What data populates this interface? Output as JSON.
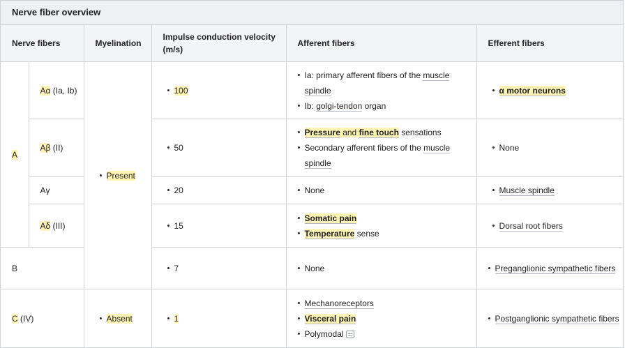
{
  "title": "Nerve fiber overview",
  "headers": {
    "nerve_fibers": "Nerve fibers",
    "myelination": "Myelination",
    "velocity": "Impulse conduction velocity (m/s)",
    "afferent": "Afferent fibers",
    "efferent": "Efferent fibers"
  },
  "groups": {
    "A": "A",
    "B": "B",
    "C": "C",
    "C_suffix": " (IV)"
  },
  "subtypes": {
    "aa_sym": "Aα",
    "aa_rest": " (Ia, Ib)",
    "ab_sym": "Aβ",
    "ab_rest": " (II)",
    "ag": "Aγ",
    "ad_sym": "Aδ",
    "ad_rest": " (III)"
  },
  "myelination": {
    "present": "Present",
    "absent": "Absent"
  },
  "velocity": {
    "aa": "100",
    "ab": "50",
    "ag": "20",
    "ad": "15",
    "b": "7",
    "c": "1"
  },
  "afferent": {
    "aa_1_pre": "Ia: primary afferent fibers of the ",
    "aa_1_link": "muscle spindle",
    "aa_2_pre": "Ib: ",
    "aa_2_link": "golgi-tendon",
    "aa_2_post": " organ",
    "ab_1_a": "Pressure",
    "ab_1_and": " and ",
    "ab_1_b": "fine touch",
    "ab_1_post": " sensations",
    "ab_2_pre": "Secondary afferent fibers of the ",
    "ab_2_link": "muscle spindle",
    "ag": "None",
    "ad_1": "Somatic pain",
    "ad_2_a": "Temperature",
    "ad_2_post": " sense",
    "b": "None",
    "c_1": "Mechanoreceptors",
    "c_2": "Visceral pain",
    "c_3": "Polymodal"
  },
  "efferent": {
    "aa": "α motor neurons",
    "ab": "None",
    "ag": "Muscle spindle",
    "ad": "Dorsal root fibers",
    "b": "Preganglionic sympathetic fibers",
    "c": "Postganglionic sympathetic fibers"
  }
}
